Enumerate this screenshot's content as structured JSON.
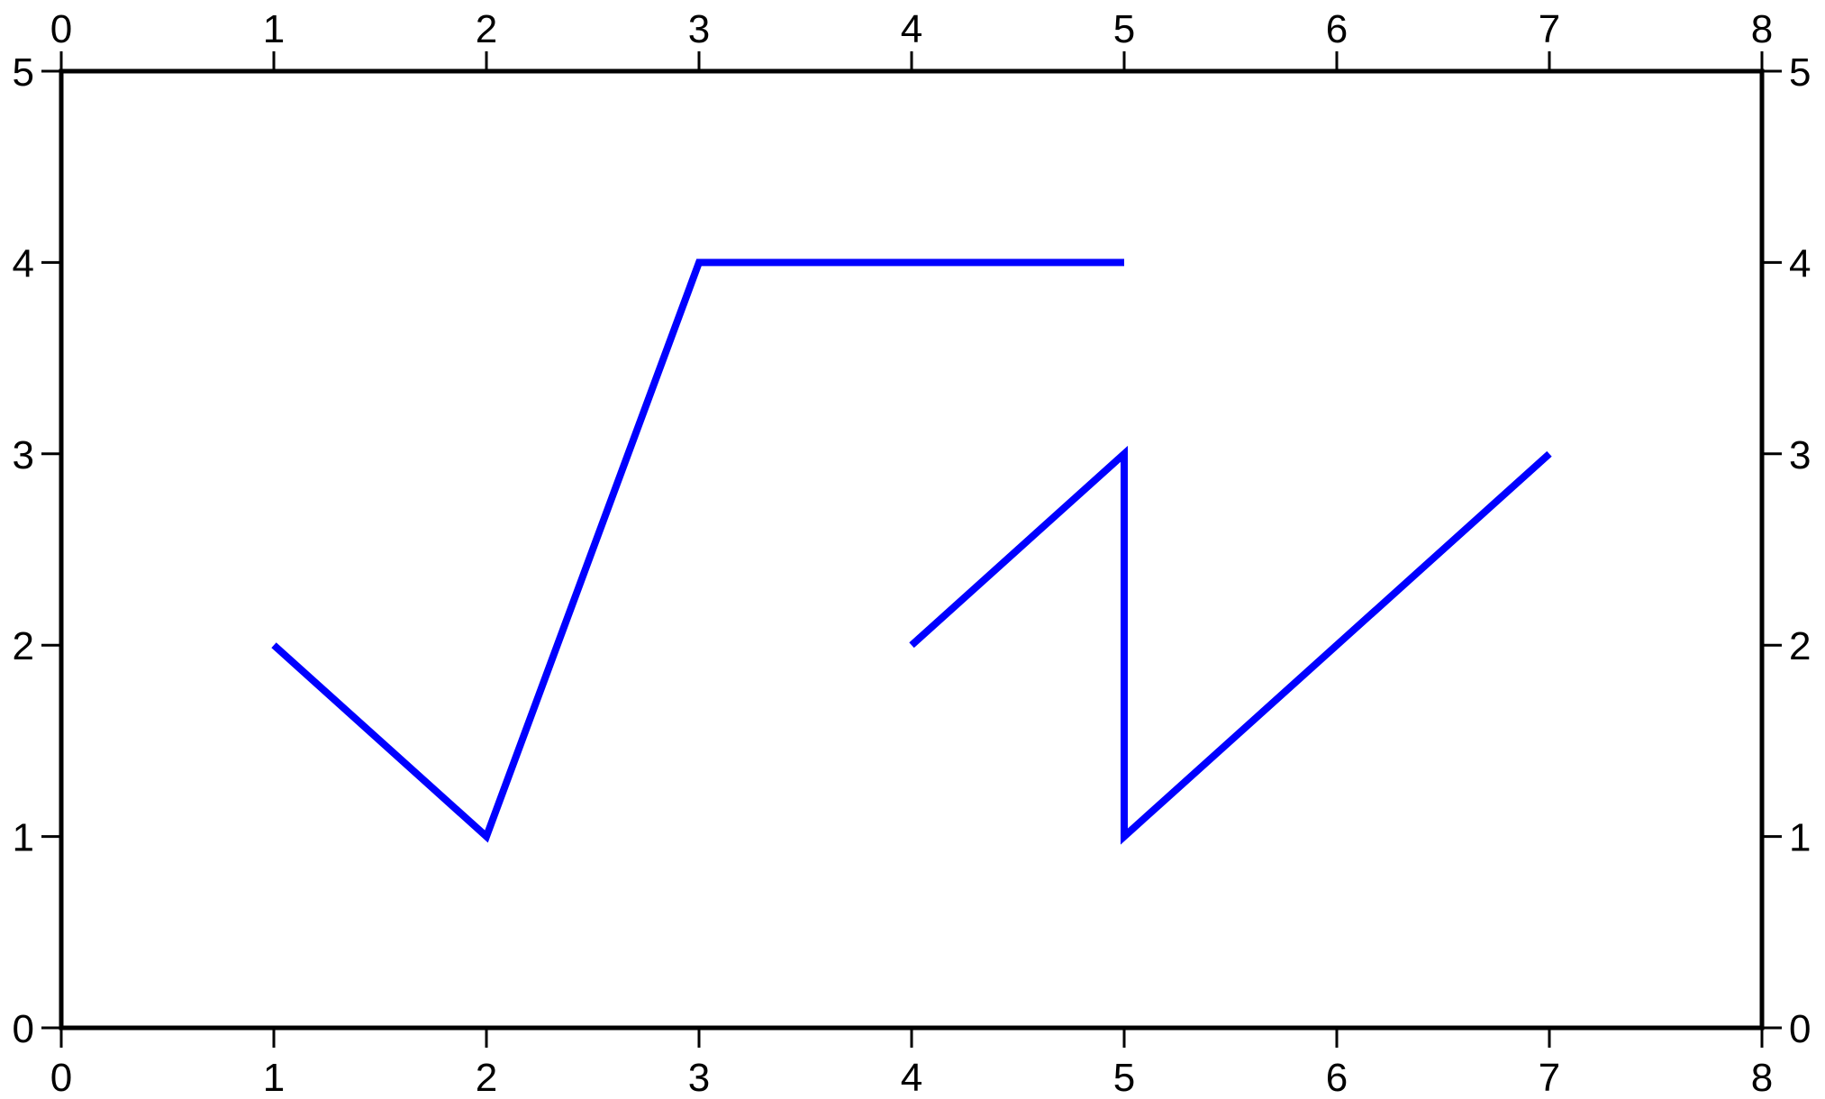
{
  "chart_data": {
    "type": "line",
    "title": "",
    "xlabel": "",
    "ylabel": "",
    "xlim": [
      0,
      8
    ],
    "ylim": [
      0,
      5
    ],
    "grid": false,
    "legend": null,
    "axes": {
      "ticks_on": [
        "top",
        "bottom",
        "left",
        "right"
      ],
      "x_ticks": [
        0,
        1,
        2,
        3,
        4,
        5,
        6,
        7,
        8
      ],
      "y_ticks": [
        0,
        1,
        2,
        3,
        4,
        5
      ],
      "x_tick_labels": [
        "0",
        "1",
        "2",
        "3",
        "4",
        "5",
        "6",
        "7",
        "8"
      ],
      "y_tick_labels": [
        "0",
        "1",
        "2",
        "3",
        "4",
        "5"
      ]
    },
    "series": [
      {
        "color": "#0000ff",
        "points": [
          [
            1,
            2
          ],
          [
            2,
            1
          ],
          [
            3,
            4
          ],
          [
            5,
            4
          ]
        ]
      },
      {
        "color": "#0000ff",
        "points": [
          [
            4,
            2
          ],
          [
            5,
            3
          ],
          [
            5,
            1
          ],
          [
            7,
            3
          ]
        ]
      }
    ]
  }
}
